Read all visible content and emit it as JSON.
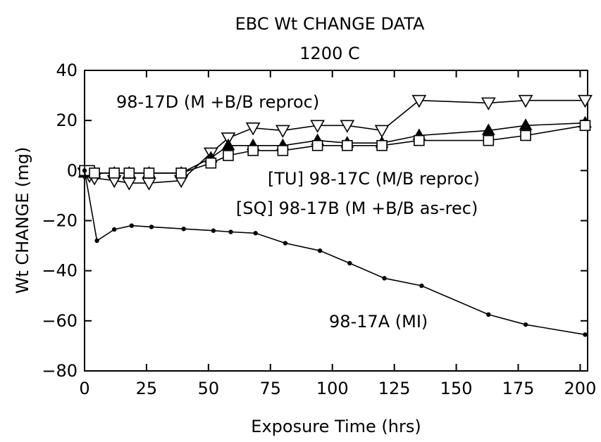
{
  "chart_data": {
    "type": "line",
    "title": "EBC Wt CHANGE DATA",
    "subtitle": "1200 C",
    "xlabel": "Exposure Time (hrs)",
    "ylabel": "Wt CHANGE (mg)",
    "xlim": [
      0,
      203
    ],
    "ylim": [
      -80,
      40
    ],
    "xticks": [
      0,
      25,
      50,
      75,
      100,
      125,
      150,
      175,
      200
    ],
    "yticks": [
      -80,
      -60,
      -40,
      -20,
      0,
      20,
      40
    ],
    "grid": false,
    "series": [
      {
        "name": "98-17D (M +B/B reproc)",
        "marker": "triangle-down-open",
        "x": [
          0,
          2,
          4,
          12,
          18,
          26,
          39,
          51,
          58,
          68,
          80,
          94,
          106,
          120,
          135,
          163,
          178,
          202
        ],
        "y": [
          -1,
          -2,
          -3,
          -4,
          -5,
          -5,
          -4,
          7,
          13,
          17,
          16,
          18,
          18,
          16,
          28,
          27,
          28,
          28
        ]
      },
      {
        "name": "98-17C (M/B reproc)",
        "marker": "triangle-up-filled",
        "x": [
          0,
          2,
          4,
          12,
          18,
          26,
          39,
          51,
          58,
          68,
          80,
          94,
          106,
          120,
          135,
          163,
          178,
          202
        ],
        "y": [
          -1,
          -1,
          -1,
          -1,
          -1,
          -1,
          -1,
          5,
          10,
          10,
          10,
          12,
          11,
          11,
          14,
          16,
          18,
          19
        ]
      },
      {
        "name": "98-17B (M +B/B as-rec)",
        "marker": "square-open",
        "x": [
          0,
          2,
          4,
          12,
          18,
          26,
          39,
          51,
          58,
          68,
          80,
          94,
          106,
          120,
          135,
          163,
          178,
          202
        ],
        "y": [
          0,
          0,
          -1,
          -1,
          -1,
          -1,
          -1,
          3,
          6,
          8,
          8,
          10,
          10,
          10,
          12,
          12,
          14,
          18
        ]
      },
      {
        "name": "98-17A (MI)",
        "marker": "dot",
        "x": [
          0,
          5,
          12,
          19,
          27,
          40,
          52,
          59,
          69,
          81,
          95,
          107,
          121,
          136,
          163,
          178,
          202
        ],
        "y": [
          0,
          -28,
          -23.5,
          -22,
          -22.5,
          -23.3,
          -24,
          -24.5,
          -25,
          -29,
          -32,
          -37,
          -43,
          -46,
          -57.5,
          -61.5,
          -65.5
        ]
      }
    ],
    "annotations": [
      {
        "text": "98-17D (M +B/B reproc)",
        "series": 0
      },
      {
        "text": "[TU] 98-17C (M/B reproc)",
        "series": 1
      },
      {
        "text": "[SQ] 98-17B (M +B/B as-rec)",
        "series": 2
      },
      {
        "text": "98-17A (MI)",
        "series": 3
      }
    ]
  }
}
